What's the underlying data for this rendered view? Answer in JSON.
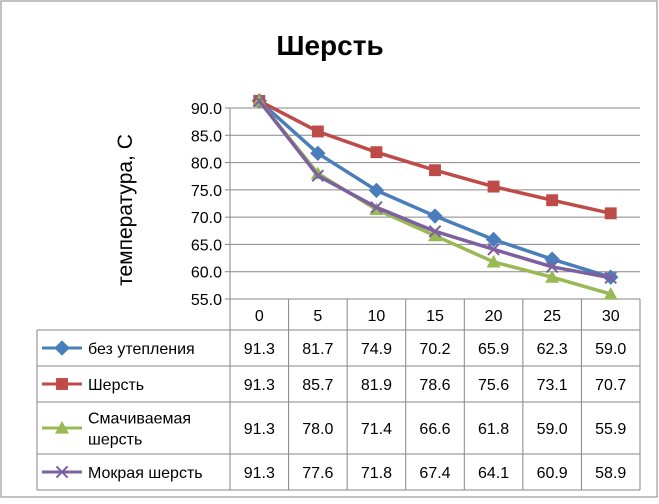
{
  "chart_data": {
    "type": "line",
    "title": "Шерсть",
    "xlabel": "",
    "ylabel": "температура, С",
    "ylim": [
      55.0,
      90.0
    ],
    "yticks": [
      "55.0",
      "60.0",
      "65.0",
      "70.0",
      "75.0",
      "80.0",
      "85.0",
      "90.0"
    ],
    "categories": [
      "0",
      "5",
      "10",
      "15",
      "20",
      "25",
      "30"
    ],
    "grid": true,
    "legend": "data-table-below",
    "series": [
      {
        "name": "без утепления",
        "name_lines": [
          "без утепления"
        ],
        "color": "#4A7EBB",
        "marker": "diamond",
        "values": [
          91.3,
          81.7,
          74.9,
          70.2,
          65.9,
          62.3,
          59.0
        ],
        "labels": [
          "91.3",
          "81.7",
          "74.9",
          "70.2",
          "65.9",
          "62.3",
          "59.0"
        ]
      },
      {
        "name": "Шерсть",
        "name_lines": [
          "Шерсть"
        ],
        "color": "#BE4B48",
        "marker": "square",
        "values": [
          91.3,
          85.7,
          81.9,
          78.6,
          75.6,
          73.1,
          70.7
        ],
        "labels": [
          "91.3",
          "85.7",
          "81.9",
          "78.6",
          "75.6",
          "73.1",
          "70.7"
        ]
      },
      {
        "name": "Смачиваемая шерсть",
        "name_lines": [
          "Смачиваемая",
          "шерсть"
        ],
        "color": "#98B954",
        "marker": "triangle",
        "values": [
          91.3,
          78.0,
          71.4,
          66.6,
          61.8,
          59.0,
          55.9
        ],
        "labels": [
          "91.3",
          "78.0",
          "71.4",
          "66.6",
          "61.8",
          "59.0",
          "55.9"
        ]
      },
      {
        "name": "Мокрая шерсть",
        "name_lines": [
          "Мокрая шерсть"
        ],
        "color": "#7D60A0",
        "marker": "x",
        "values": [
          91.3,
          77.6,
          71.8,
          67.4,
          64.1,
          60.9,
          58.9
        ],
        "labels": [
          "91.3",
          "77.6",
          "71.8",
          "67.4",
          "64.1",
          "60.9",
          "58.9"
        ]
      }
    ]
  }
}
